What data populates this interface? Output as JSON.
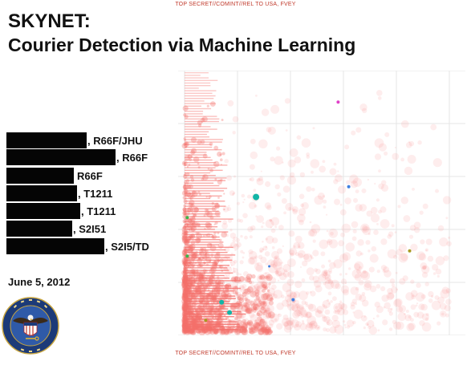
{
  "classification": {
    "top": "TOP SECRET//COMINT//REL TO USA, FVEY",
    "bottom": "TOP SECRET//COMINT//REL TO USA, FVEY"
  },
  "title": {
    "line1": "SKYNET:",
    "line2": "Courier Detection via Machine Learning"
  },
  "authors": [
    {
      "org": ", R66F/JHU",
      "redacted": true
    },
    {
      "org": ", R66F",
      "redacted": true
    },
    {
      "org": "R66F",
      "redacted": true
    },
    {
      "org": ", T1211",
      "redacted": true
    },
    {
      "org": ", T1211",
      "redacted": true
    },
    {
      "org": ", S2I51",
      "redacted": true
    },
    {
      "org": ", S2I5/TD",
      "redacted": true
    }
  ],
  "date": "June 5, 2012",
  "seal": {
    "icon": "nsa-seal-icon",
    "text_top": "NATIONAL SECURITY AGENCY",
    "text_bottom": "UNITED STATES OF AMERICA"
  },
  "plot": {
    "type": "scatter",
    "grid": true,
    "colors": {
      "bulk": "#f46f6a",
      "teal": "#12b5a6",
      "green": "#3bb54a",
      "magenta": "#e040c8",
      "blue": "#3f7fe0",
      "olive": "#a89a22",
      "grid": "#e6e6e6"
    },
    "highlights": [
      {
        "color": "teal",
        "x": 0.27,
        "y": 0.52,
        "size": 4
      },
      {
        "color": "teal",
        "x": 0.14,
        "y": 0.11,
        "size": 3
      },
      {
        "color": "teal",
        "x": 0.17,
        "y": 0.07,
        "size": 3
      },
      {
        "color": "magenta",
        "x": 0.58,
        "y": 0.89,
        "size": 2
      },
      {
        "color": "blue",
        "x": 0.62,
        "y": 0.56,
        "size": 2
      },
      {
        "color": "blue",
        "x": 0.41,
        "y": 0.12,
        "size": 2
      },
      {
        "color": "olive",
        "x": 0.85,
        "y": 0.31,
        "size": 2
      },
      {
        "color": "green",
        "x": 0.01,
        "y": 0.44,
        "size": 2
      },
      {
        "color": "green",
        "x": 0.01,
        "y": 0.29,
        "size": 2
      },
      {
        "color": "olive",
        "x": 0.08,
        "y": 0.04,
        "size": 2
      },
      {
        "color": "blue",
        "x": 0.32,
        "y": 0.25,
        "size": 1.5
      }
    ]
  }
}
